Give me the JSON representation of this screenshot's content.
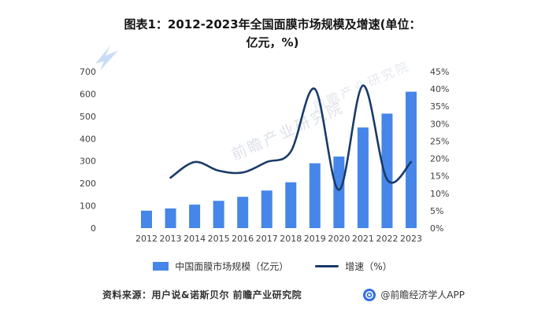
{
  "title": "图表1：2012-2023年全国面膜市场规模及增速(单位：亿元，%)",
  "watermark": {
    "text": "前瞻产业研究院"
  },
  "chart_data": {
    "type": "bar+line",
    "title": "2012-2023年全国面膜市场规模及增速",
    "categories": [
      "2012",
      "2013",
      "2014",
      "2015",
      "2016",
      "2017",
      "2018",
      "2019",
      "2020",
      "2021",
      "2022",
      "2023"
    ],
    "series": [
      {
        "name": "中国面膜市场规模（亿元）",
        "type": "bar",
        "axis": "left",
        "color": "#4686e8",
        "values": [
          78,
          88,
          105,
          122,
          140,
          168,
          205,
          290,
          320,
          450,
          512,
          610
        ]
      },
      {
        "name": "增速（%）",
        "type": "line",
        "axis": "right",
        "color": "#1a3a68",
        "values": [
          null,
          14.5,
          19,
          16.5,
          16,
          19,
          22,
          40,
          11,
          41,
          14,
          19
        ]
      }
    ],
    "left_axis": {
      "min": 0,
      "max": 700,
      "ticks": [
        "0",
        "100",
        "200",
        "300",
        "400",
        "500",
        "600",
        "700"
      ]
    },
    "right_axis": {
      "min": 0,
      "max": 45,
      "ticks": [
        "0%",
        "5%",
        "10%",
        "15%",
        "20%",
        "25%",
        "30%",
        "35%",
        "40%",
        "45%"
      ]
    },
    "grid": false,
    "legend_position": "bottom"
  },
  "legend": {
    "bar_label": "中国面膜市场规模（亿元）",
    "line_label": "增速（%）"
  },
  "footer": {
    "source": "资料来源：用户说&诺斯贝尔 前瞻产业研究院",
    "credit": "@前瞻经济学人APP"
  }
}
